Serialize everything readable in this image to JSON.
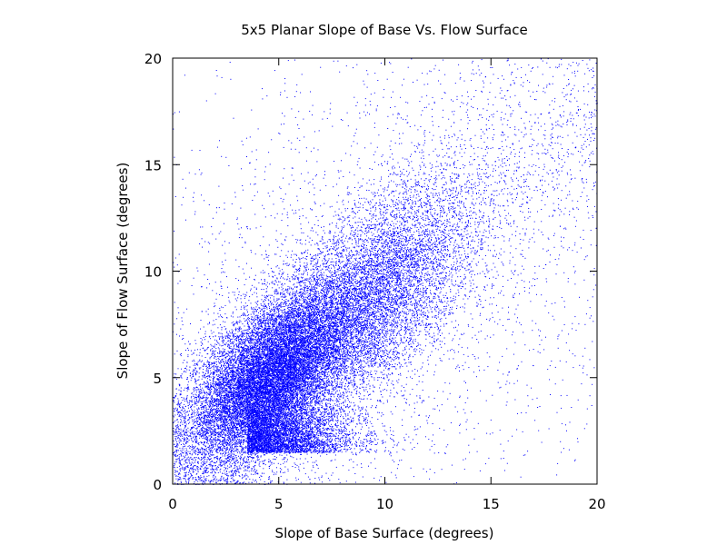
{
  "chart_data": {
    "type": "scatter",
    "title": "5x5 Planar Slope of Base Vs. Flow Surface",
    "xlabel": "Slope of Base Surface (degrees)",
    "ylabel": "Slope of Flow Surface (degrees)",
    "xlim": [
      0,
      20
    ],
    "ylim": [
      0,
      20
    ],
    "xticks": [
      0,
      5,
      10,
      15,
      20
    ],
    "yticks": [
      0,
      5,
      10,
      15,
      20
    ],
    "grid": false,
    "legend": "none",
    "marker_color": "#0000ff",
    "distribution": {
      "dense_core_center": [
        4.5,
        5.0
      ],
      "secondary_cluster_center": [
        9.0,
        8.5
      ],
      "cloud_extends_to": [
        20,
        20
      ],
      "correlation": "positive"
    },
    "series": [
      {
        "points": [
          [
            3.0,
            4.0
          ],
          [
            4.2,
            5.1
          ],
          [
            5.0,
            6.0
          ],
          [
            6.1,
            6.8
          ],
          [
            7.5,
            7.0
          ],
          [
            8.4,
            8.2
          ],
          [
            9.3,
            8.6
          ],
          [
            10.2,
            9.0
          ],
          [
            11.5,
            10.8
          ],
          [
            12.8,
            12.4
          ],
          [
            14.0,
            13.0
          ],
          [
            15.5,
            15.2
          ],
          [
            17.2,
            16.0
          ],
          [
            1.5,
            2.0
          ],
          [
            2.2,
            1.1
          ],
          [
            3.6,
            2.5
          ],
          [
            5.8,
            3.4
          ],
          [
            8.0,
            4.8
          ],
          [
            11.0,
            6.2
          ],
          [
            13.5,
            4.1
          ],
          [
            16.4,
            7.5
          ],
          [
            18.5,
            2.8
          ],
          [
            2.0,
            9.5
          ],
          [
            3.1,
            12.0
          ],
          [
            4.5,
            15.6
          ],
          [
            6.0,
            18.4
          ],
          [
            9.0,
            17.5
          ],
          [
            12.0,
            18.8
          ],
          [
            0.8,
            6.6
          ],
          [
            1.2,
            3.3
          ]
        ]
      }
    ]
  }
}
